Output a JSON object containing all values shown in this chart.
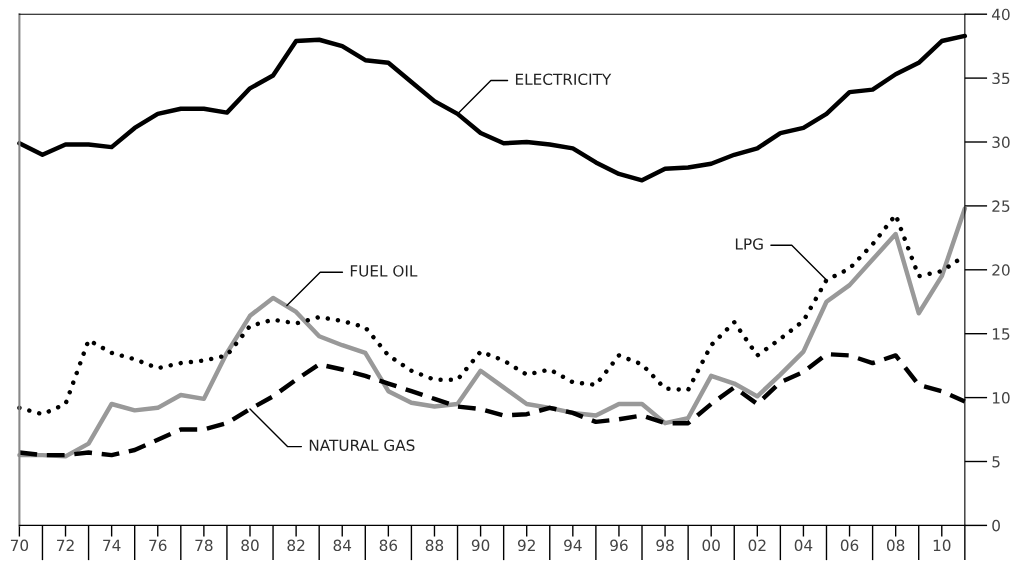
{
  "chart_data": {
    "type": "line",
    "x": [
      1970,
      1971,
      1972,
      1973,
      1974,
      1975,
      1976,
      1977,
      1978,
      1979,
      1980,
      1981,
      1982,
      1983,
      1984,
      1985,
      1986,
      1987,
      1988,
      1989,
      1990,
      1991,
      1992,
      1993,
      1994,
      1995,
      1996,
      1997,
      1998,
      1999,
      2000,
      2001,
      2002,
      2003,
      2004,
      2005,
      2006,
      2007,
      2008,
      2009,
      2010,
      2011
    ],
    "series": [
      {
        "color": "#000000",
        "line_style": "solid",
        "values": [
          29.9,
          29.0,
          29.8,
          29.8,
          29.6,
          31.1,
          32.2,
          32.6,
          32.6,
          32.3,
          34.2,
          35.2,
          37.9,
          38.0,
          37.5,
          36.4,
          36.2,
          34.7,
          33.2,
          32.2,
          30.7,
          29.9,
          30.0,
          29.8,
          29.5,
          28.4,
          27.5,
          27.0,
          27.9,
          28.0,
          28.3,
          29.0,
          29.5,
          30.7,
          31.1,
          32.2,
          33.9,
          34.1,
          35.3,
          36.2,
          37.9,
          38.3
        ]
      },
      {
        "color": "#999999",
        "line_style": "solid",
        "values": [
          5.5,
          5.5,
          5.4,
          6.4,
          9.5,
          9.0,
          9.2,
          10.2,
          9.9,
          13.5,
          16.4,
          17.8,
          16.7,
          14.8,
          14.1,
          13.5,
          10.5,
          9.6,
          9.3,
          9.5,
          12.1,
          10.8,
          9.5,
          9.2,
          8.8,
          8.6,
          9.5,
          9.5,
          8.0,
          8.4,
          11.7,
          11.1,
          10.1,
          11.8,
          13.6,
          17.5,
          18.8,
          20.8,
          22.8,
          16.6,
          19.5,
          24.8
        ]
      },
      {
        "color": "#000000",
        "line_style": "dotted",
        "values": [
          9.2,
          8.7,
          9.5,
          14.5,
          13.5,
          13.0,
          12.3,
          12.7,
          12.9,
          13.3,
          15.6,
          16.1,
          15.8,
          16.3,
          16.0,
          15.5,
          13.3,
          12.1,
          11.4,
          11.4,
          13.6,
          12.9,
          11.8,
          12.2,
          11.2,
          11.0,
          13.3,
          12.6,
          10.7,
          10.6,
          14.1,
          15.9,
          13.3,
          14.6,
          16.0,
          19.2,
          20.1,
          22.0,
          24.3,
          19.5,
          19.9,
          21.1
        ]
      },
      {
        "color": "#000000",
        "line_style": "dashed",
        "values": [
          5.7,
          5.5,
          5.5,
          5.7,
          5.5,
          5.9,
          6.7,
          7.5,
          7.5,
          8.0,
          9.1,
          10.1,
          11.4,
          12.6,
          12.2,
          11.7,
          11.1,
          10.5,
          9.9,
          9.3,
          9.1,
          8.6,
          8.7,
          9.2,
          8.8,
          8.1,
          8.3,
          8.6,
          8.0,
          8.0,
          9.5,
          10.8,
          9.5,
          11.2,
          12.0,
          13.4,
          13.3,
          12.7,
          13.3,
          11.0,
          10.5,
          9.7
        ]
      }
    ],
    "xlim": [
      1970,
      2011
    ],
    "xticks": [
      {
        "value": 1970,
        "label": "70"
      },
      {
        "value": 1972,
        "label": "72"
      },
      {
        "value": 1974,
        "label": "74"
      },
      {
        "value": 1976,
        "label": "76"
      },
      {
        "value": 1978,
        "label": "78"
      },
      {
        "value": 1980,
        "label": "80"
      },
      {
        "value": 1982,
        "label": "82"
      },
      {
        "value": 1984,
        "label": "84"
      },
      {
        "value": 1986,
        "label": "86"
      },
      {
        "value": 1988,
        "label": "88"
      },
      {
        "value": 1990,
        "label": "90"
      },
      {
        "value": 1992,
        "label": "92"
      },
      {
        "value": 1994,
        "label": "94"
      },
      {
        "value": 1996,
        "label": "96"
      },
      {
        "value": 1998,
        "label": "98"
      },
      {
        "value": 2000,
        "label": "00"
      },
      {
        "value": 2002,
        "label": "02"
      },
      {
        "value": 2004,
        "label": "04"
      },
      {
        "value": 2006,
        "label": "06"
      },
      {
        "value": 2008,
        "label": "08"
      },
      {
        "value": 2010,
        "label": "10"
      }
    ],
    "ylim": [
      0,
      40
    ],
    "yticks": [
      0,
      5,
      10,
      15,
      20,
      25,
      30,
      35,
      40
    ],
    "grid": false,
    "annotations": [
      {
        "text": "ELECTRICITY",
        "x": 1989,
        "y": 32.2
      },
      {
        "text": "FUEL OIL",
        "x": 1981.6,
        "y": 17.2
      },
      {
        "text": "NATURAL GAS",
        "x": 1980,
        "y": 9.1
      },
      {
        "text": "LPG",
        "x": 2005,
        "y": 19.2
      }
    ]
  }
}
